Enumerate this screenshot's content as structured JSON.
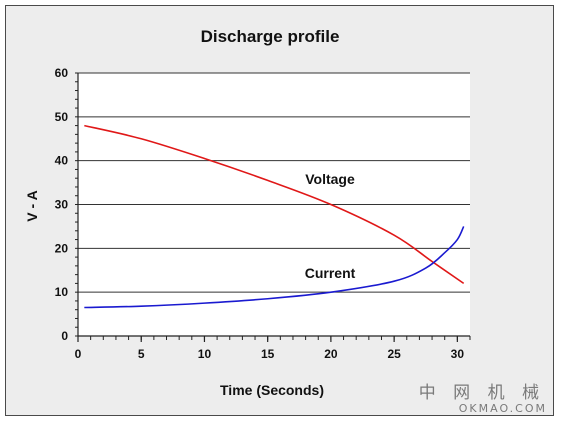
{
  "chart_data": {
    "type": "line",
    "title": "Discharge profile",
    "xlabel": "Time (Seconds)",
    "ylabel": "V - A",
    "xlim": [
      0,
      31
    ],
    "ylim": [
      0,
      60
    ],
    "x_ticks": [
      0,
      5,
      10,
      15,
      20,
      25,
      30
    ],
    "y_ticks": [
      0,
      10,
      20,
      30,
      40,
      50,
      60
    ],
    "grid": "horizontal",
    "series": [
      {
        "name": "Voltage",
        "color": "#e01818",
        "points": [
          [
            0.5,
            48
          ],
          [
            5,
            45
          ],
          [
            10,
            40.5
          ],
          [
            15,
            35.5
          ],
          [
            20,
            30
          ],
          [
            25,
            23
          ],
          [
            28,
            17
          ],
          [
            30.5,
            12
          ]
        ]
      },
      {
        "name": "Current",
        "color": "#1a1ad0",
        "points": [
          [
            0.5,
            6.5
          ],
          [
            5,
            6.8
          ],
          [
            10,
            7.5
          ],
          [
            15,
            8.5
          ],
          [
            20,
            10
          ],
          [
            25,
            12.5
          ],
          [
            27.5,
            15.5
          ],
          [
            29,
            19
          ],
          [
            30,
            22
          ],
          [
            30.5,
            25
          ]
        ]
      }
    ]
  },
  "watermark": {
    "line1": "中 网 机 械",
    "line2": "OKMAO.COM"
  }
}
